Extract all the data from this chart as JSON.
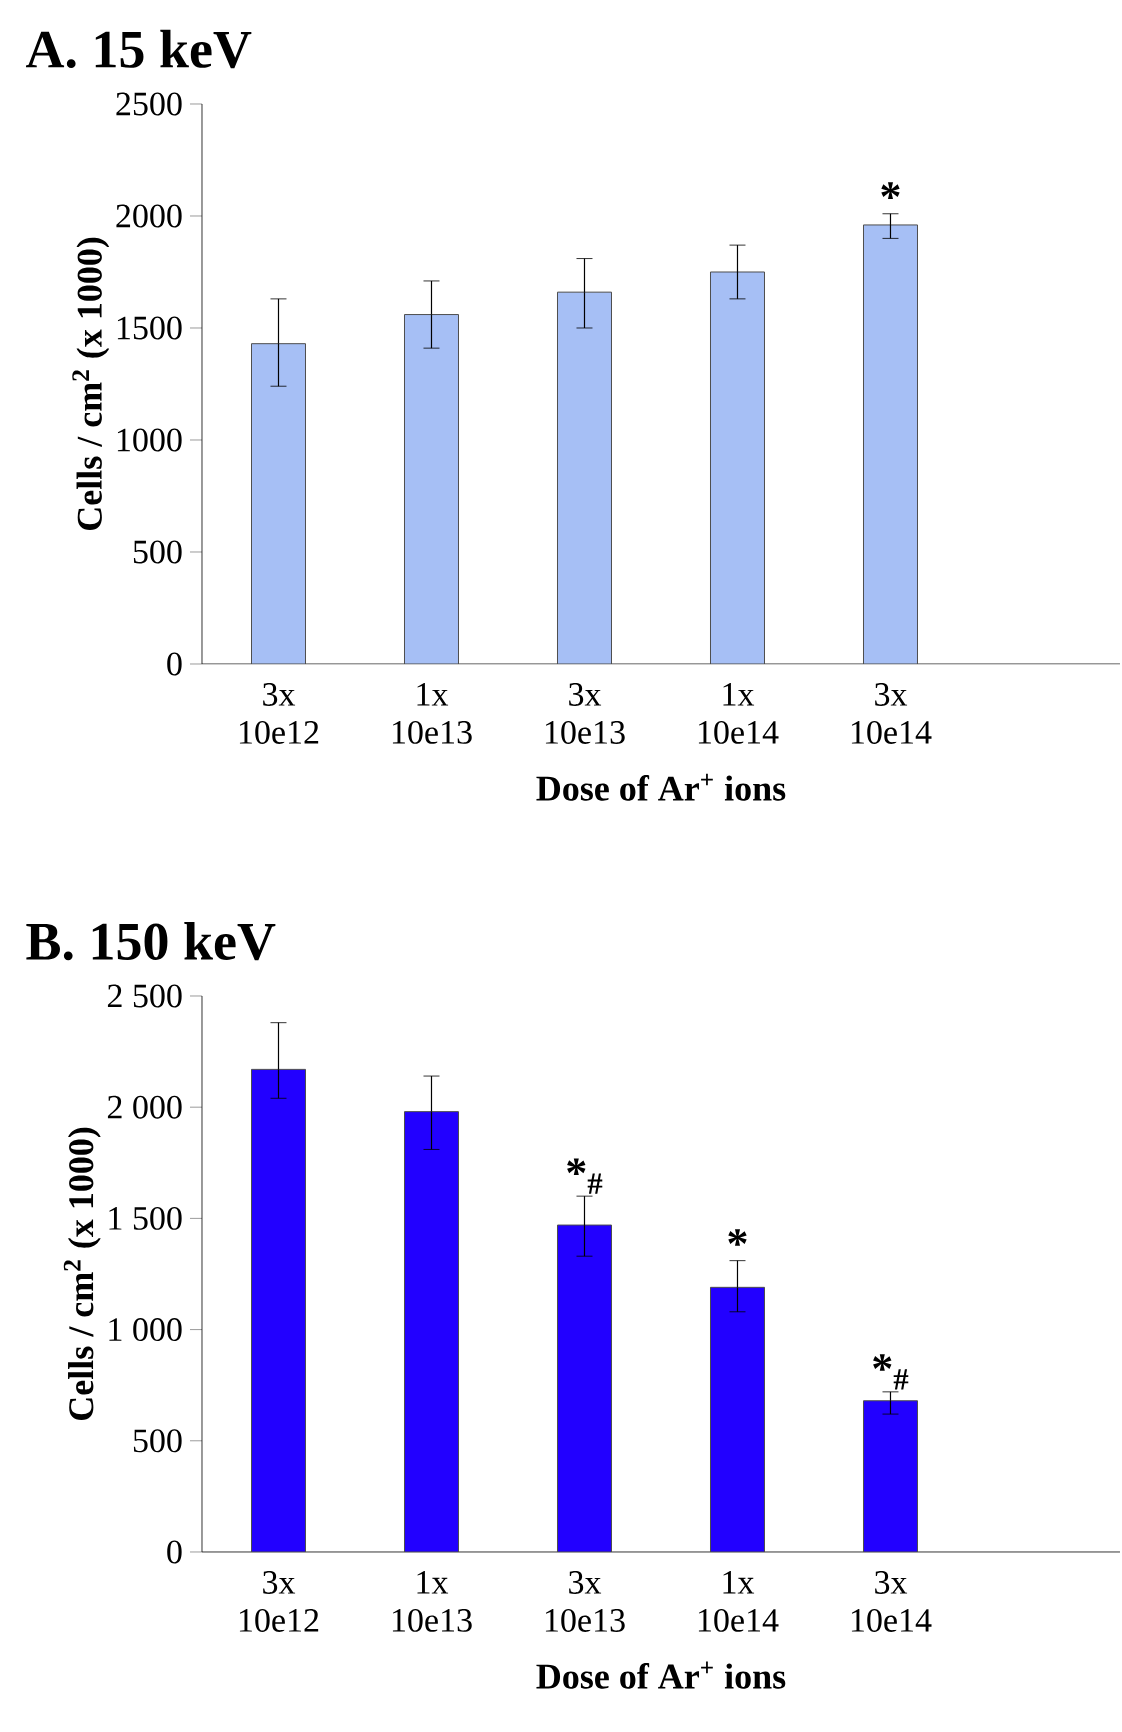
{
  "chart_data": [
    {
      "type": "bar",
      "title": "A. 15 keV",
      "xlabel": "Dose of Ar$^{+}$ ions",
      "ylabel": "Cells / cm$^{2}$ (x 1000)",
      "categories": [
        "3x 10e12",
        "1x 10e13",
        "3x 10e13",
        "1x 10e14",
        "3x 10e14"
      ],
      "values": [
        1430,
        1560,
        1660,
        1750,
        1960
      ],
      "color": "#a6bff5",
      "errors": [
        [
          1240,
          1630
        ],
        [
          1410,
          1710
        ],
        [
          1500,
          1810
        ],
        [
          1630,
          1870
        ],
        [
          1900,
          2010
        ]
      ],
      "ylim": [
        0,
        2500
      ],
      "yticks": [
        0,
        500,
        1000,
        1500,
        2000,
        2500
      ],
      "annotations": [
        {
          "text": "*",
          "x": "3x 10e14",
          "y": 2010
        }
      ]
    },
    {
      "type": "bar",
      "title": "B. 150 keV",
      "xlabel": "Dose of Ar$^{+}$ ions",
      "ylabel": "Cells / cm$^{2}$ (x 1000)",
      "categories": [
        "3x 10e12",
        "1x 10e13",
        "3x 10e13",
        "1x 10e14",
        "3x 10e14"
      ],
      "values": [
        2170,
        1980,
        1470,
        1190,
        680
      ],
      "color": "#2200ff",
      "errors": [
        [
          2040,
          2380
        ],
        [
          1810,
          2140
        ],
        [
          1330,
          1600
        ],
        [
          1080,
          1310
        ],
        [
          620,
          720
        ]
      ],
      "ylim": [
        0,
        2500
      ],
      "yticks": [
        0,
        500,
        {
          "value": 1000,
          "label": "1 000"
        },
        {
          "value": 1500,
          "label": "1 500"
        },
        {
          "value": 2000,
          "label": "2 000"
        },
        {
          "value": 2500,
          "label": "2 500"
        }
      ],
      "annotations": [
        {
          "text": "*$_{#}$",
          "x": "3x 10e13",
          "y": 1600
        },
        {
          "text": "*",
          "x": "1x 10e14",
          "y": 1310
        },
        {
          "text": "*$_{#}$",
          "x": "3x 10e14",
          "y": 720
        }
      ]
    }
  ]
}
